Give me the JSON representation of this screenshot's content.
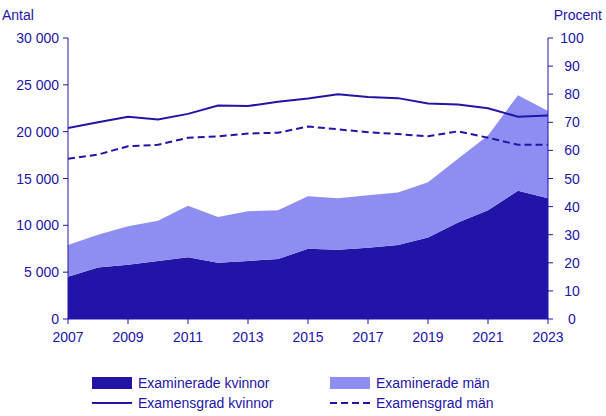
{
  "chart_data": {
    "type": "area",
    "y_label": "Antal",
    "y2_label": "Procent",
    "stacked": true,
    "legend": "bottom",
    "grid": false,
    "x": [
      2007,
      2008,
      2009,
      2010,
      2011,
      2012,
      2013,
      2014,
      2015,
      2016,
      2017,
      2018,
      2019,
      2020,
      2021,
      2022,
      2023
    ],
    "xlim": [
      2007,
      2023
    ],
    "xticks": [
      2007,
      2009,
      2011,
      2013,
      2015,
      2017,
      2019,
      2021,
      2023
    ],
    "ylim": [
      0,
      30000
    ],
    "yticks": [
      0,
      {
        "value": 5000,
        "label": "5 000"
      },
      {
        "value": 10000,
        "label": "10 000"
      },
      {
        "value": 15000,
        "label": "15 000"
      },
      {
        "value": 20000,
        "label": "20 000"
      },
      {
        "value": 25000,
        "label": "25 000"
      },
      {
        "value": 30000,
        "label": "30 000"
      }
    ],
    "y2lim": [
      0,
      100
    ],
    "y2ticks": [
      0,
      10,
      20,
      30,
      40,
      50,
      60,
      70,
      80,
      90,
      100
    ],
    "series": [
      {
        "name": "Examinerade kvinnor",
        "type": "area",
        "color": "#2314a8",
        "values": [
          4500,
          5500,
          5800,
          6200,
          6600,
          6000,
          6200,
          6400,
          7500,
          7400,
          7600,
          7900,
          8700,
          10300,
          11600,
          13700,
          12900
        ]
      },
      {
        "name": "Examinerade män",
        "type": "area",
        "color": "#8e8ef2",
        "values": [
          3400,
          3500,
          4100,
          4300,
          5500,
          4900,
          5300,
          5200,
          5600,
          5500,
          5600,
          5600,
          5900,
          6800,
          8000,
          10200,
          9300
        ]
      },
      {
        "name": "Examensgrad kvinnor",
        "type": "line",
        "axis": "y2",
        "color": "#2314a8",
        "line_style": "solid",
        "values": [
          68,
          70,
          72,
          71,
          73,
          76,
          75.8,
          77.3,
          78.5,
          80,
          79,
          78.6,
          76.7,
          76.3,
          75,
          72,
          72.4
        ]
      },
      {
        "name": "Examensgrad män",
        "type": "line",
        "axis": "y2",
        "color": "#2314a8",
        "line_style": "dashed",
        "values": [
          57,
          58.5,
          61.5,
          62,
          64.5,
          65,
          66,
          66.3,
          68.5,
          67.5,
          66.5,
          65.8,
          65,
          66.8,
          64.5,
          62,
          62
        ]
      }
    ]
  }
}
